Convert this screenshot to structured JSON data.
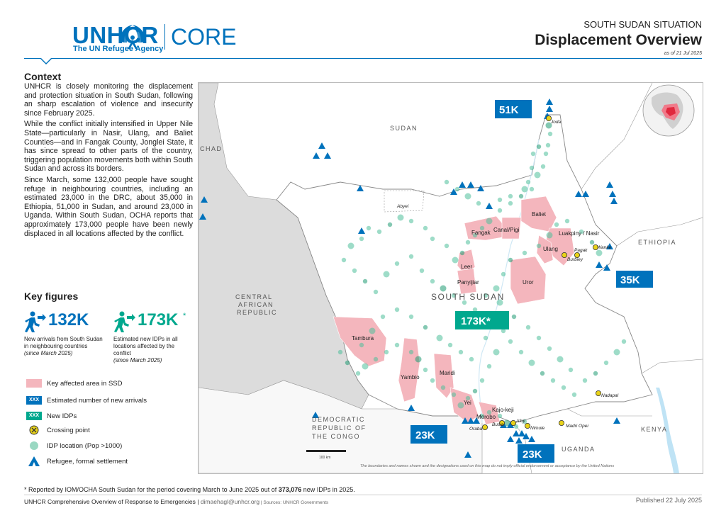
{
  "header": {
    "logo_main": "UNHCR",
    "logo_sub": "The UN Refugee Agency",
    "logo_core": "CORE",
    "situation": "SOUTH SUDAN SITUATION",
    "title": "Displacement Overview",
    "as_of": "as of 21 Jul 2025"
  },
  "context": {
    "title": "Context",
    "paragraphs": [
      "UNHCR is closely monitoring the displacement and protection situation in South Sudan, following an sharp escalation of violence and insecurity since February 2025.",
      "While the conflict initially intensified in Upper Nile State—particularly in Nasir, Ulang, and Baliet Counties—and in Fangak County, Jonglei State, it has since spread to other parts of the country, triggering population movements both within South Sudan and across its borders.",
      "Since March, some 132,000 people have sought refuge in neighbouring countries, including an estimated 23,000 in the DRC, about 35,000 in Ethiopia, 51,000 in Sudan, and around 23,000 in Uganda. Within South Sudan, OCHA reports that approximately 173,000 people have been newly displaced in all locations affected by the conflict."
    ]
  },
  "key_figures": {
    "title": "Key figures",
    "arrivals": {
      "value": "132K",
      "desc": "New arrivals from South Sudan in neighbouring countries",
      "note": "(since March 2025)"
    },
    "idps": {
      "value": "173K",
      "star": "*",
      "desc": "Estimated new IDPs in all locations affected by the conflict",
      "note": "(since March 2025)"
    }
  },
  "legend": {
    "affected": "Key affected area in SSD",
    "arrivals": "Estimated number of new arrivals",
    "idps": "New IDPs",
    "crossing": "Crossing point",
    "idp_location": "IDP location (Pop >1000)",
    "refugee": "Refugee, formal settlement",
    "badge": "XXX"
  },
  "map": {
    "countries": {
      "sudan": "SUDAN",
      "chad": "CHAD",
      "car": [
        "CENTRAL",
        "AFRICAN",
        "REPUBLIC"
      ],
      "ethiopia": "ETHIOPIA",
      "kenya": "KENYA",
      "uganda": "UGANDA",
      "drc": [
        "DEMOCRATIC",
        "REPUBLIC OF",
        "THE CONGO"
      ],
      "south_sudan": "SOUTH SUDAN",
      "abyei": "Abyei"
    },
    "counties": [
      "Fangak",
      "Canal/Pigi",
      "Baliet",
      "Luakpiny / Nasir",
      "Ulang",
      "Leer",
      "Panyijiar",
      "Uror",
      "Tambura",
      "Yambio",
      "Maridi",
      "Yei",
      "Morobo",
      "Kajo-keji"
    ],
    "crossing_points": [
      "Joda",
      "Pagak",
      "Wanke",
      "Burbiey",
      "Nadapal",
      "Oraba",
      "Busia",
      "Afoji",
      "Nimule",
      "Madri Opei"
    ],
    "boxes": {
      "sudan": "51K",
      "ethiopia": "35K",
      "drc": "23K",
      "uganda": "23K",
      "idp": "173K*"
    },
    "scale": "100 km",
    "disclaimer": "The boundaries and names shown and the designations used on this map do not imply official endorsement or acceptance by the United Nations"
  },
  "colors": {
    "unhcr_blue": "#0072bc",
    "idp_green": "#00a88e",
    "affected_pink": "#f4b6bd",
    "idp_dot": "#4fc09a",
    "crossing_yellow": "#e8d21a"
  },
  "footer": {
    "footnote_pre": "* Reported by IOM/OCHA South Sudan for the period covering March to June 2025 out of ",
    "footnote_bold": "373,076",
    "footnote_post": " new IDPs in 2025.",
    "left": "UNHCR Comprehensive Overview of Response to Emergencies | ",
    "email": "dimaehagl@unhcr.org",
    "sources": " | Sources: UNHCR Governments",
    "published": "Published 22 July 2025"
  }
}
